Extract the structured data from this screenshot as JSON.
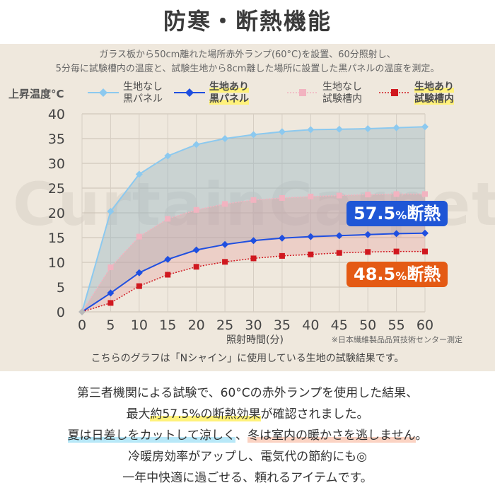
{
  "header": {
    "title": "防寒・断熱機能"
  },
  "description": {
    "line1": "ガラス板から50cm離れた場所赤外ランプ(60°C)を設置、60分照射し、",
    "line2": "5分毎に試験槽内の温度と、試験生地から8cm離した場所に設置した黒パネルの温度を測定。"
  },
  "watermark": "CurtainCarpet.com",
  "badges": {
    "black_panel": {
      "value": "57.5",
      "unit": "%",
      "label": "断熱"
    },
    "chamber": {
      "value": "48.5",
      "unit": "%",
      "label": "断熱"
    }
  },
  "note": "※日本繊維製品品質技術センター測定",
  "caption": "こちらのグラフは「Nシャイン」に使用している生地の試験結果です。",
  "body": {
    "line1": "第三者機関による試験で、60°Cの赤外ランプを使用した結果、",
    "line2_pre": "最大",
    "line2_hl": "約57.5%の断熱効果",
    "line2_post": "が確認されました。",
    "line3_a": "夏は日差しをカットして涼しく",
    "line3_mid": "、",
    "line3_b": "冬は室内の暖かさを逃しません",
    "line3_end": "。",
    "line4": "冷暖房効率がアップし、電気代の節約にも◎",
    "line5": "一年中快適に過ごせる、頼れるアイテムです。"
  },
  "chart_data": {
    "type": "line",
    "ylabel": "上昇温度°C",
    "xlabel": "照射時間(分)",
    "ylim": [
      0,
      40
    ],
    "xlim": [
      0,
      60
    ],
    "y_ticks": [
      0,
      5,
      10,
      15,
      20,
      25,
      30,
      35,
      40
    ],
    "x": [
      0,
      5,
      10,
      15,
      20,
      25,
      30,
      35,
      40,
      45,
      50,
      55,
      60
    ],
    "grid": true,
    "legend_position": "top",
    "series": [
      {
        "name": "生地なし 黒パネル",
        "name_l1": "生地なし",
        "name_l2": "黒パネル",
        "color": "#8cc9ef",
        "marker": "diamond",
        "line": "solid",
        "highlight": false,
        "values": [
          0,
          20.3,
          27.8,
          31.5,
          33.8,
          35.0,
          35.8,
          36.4,
          36.8,
          36.9,
          37.0,
          37.2,
          37.4
        ]
      },
      {
        "name": "生地あり 黒パネル",
        "name_l1": "生地あり",
        "name_l2": "黒パネル",
        "color": "#1f4fe0",
        "marker": "diamond",
        "line": "solid",
        "highlight": true,
        "values": [
          0,
          3.8,
          7.9,
          10.6,
          12.5,
          13.6,
          14.4,
          14.9,
          15.2,
          15.4,
          15.6,
          15.8,
          15.9
        ]
      },
      {
        "name": "生地なし 試験槽内",
        "name_l1": "生地なし",
        "name_l2": "試験槽内",
        "color": "#f2b3c0",
        "marker": "square",
        "line": "dotted",
        "highlight": false,
        "values": [
          0,
          9.0,
          15.2,
          18.8,
          20.6,
          21.8,
          22.6,
          23.0,
          23.3,
          23.5,
          23.7,
          23.8,
          23.8
        ]
      },
      {
        "name": "生地あり 試験槽内",
        "name_l1": "生地あり",
        "name_l2": "試験槽内",
        "color": "#d0181f",
        "marker": "square",
        "line": "dotted",
        "highlight": true,
        "values": [
          0,
          1.8,
          5.2,
          7.5,
          9.1,
          10.1,
          10.8,
          11.3,
          11.6,
          11.9,
          12.1,
          12.2,
          12.2
        ]
      }
    ]
  }
}
